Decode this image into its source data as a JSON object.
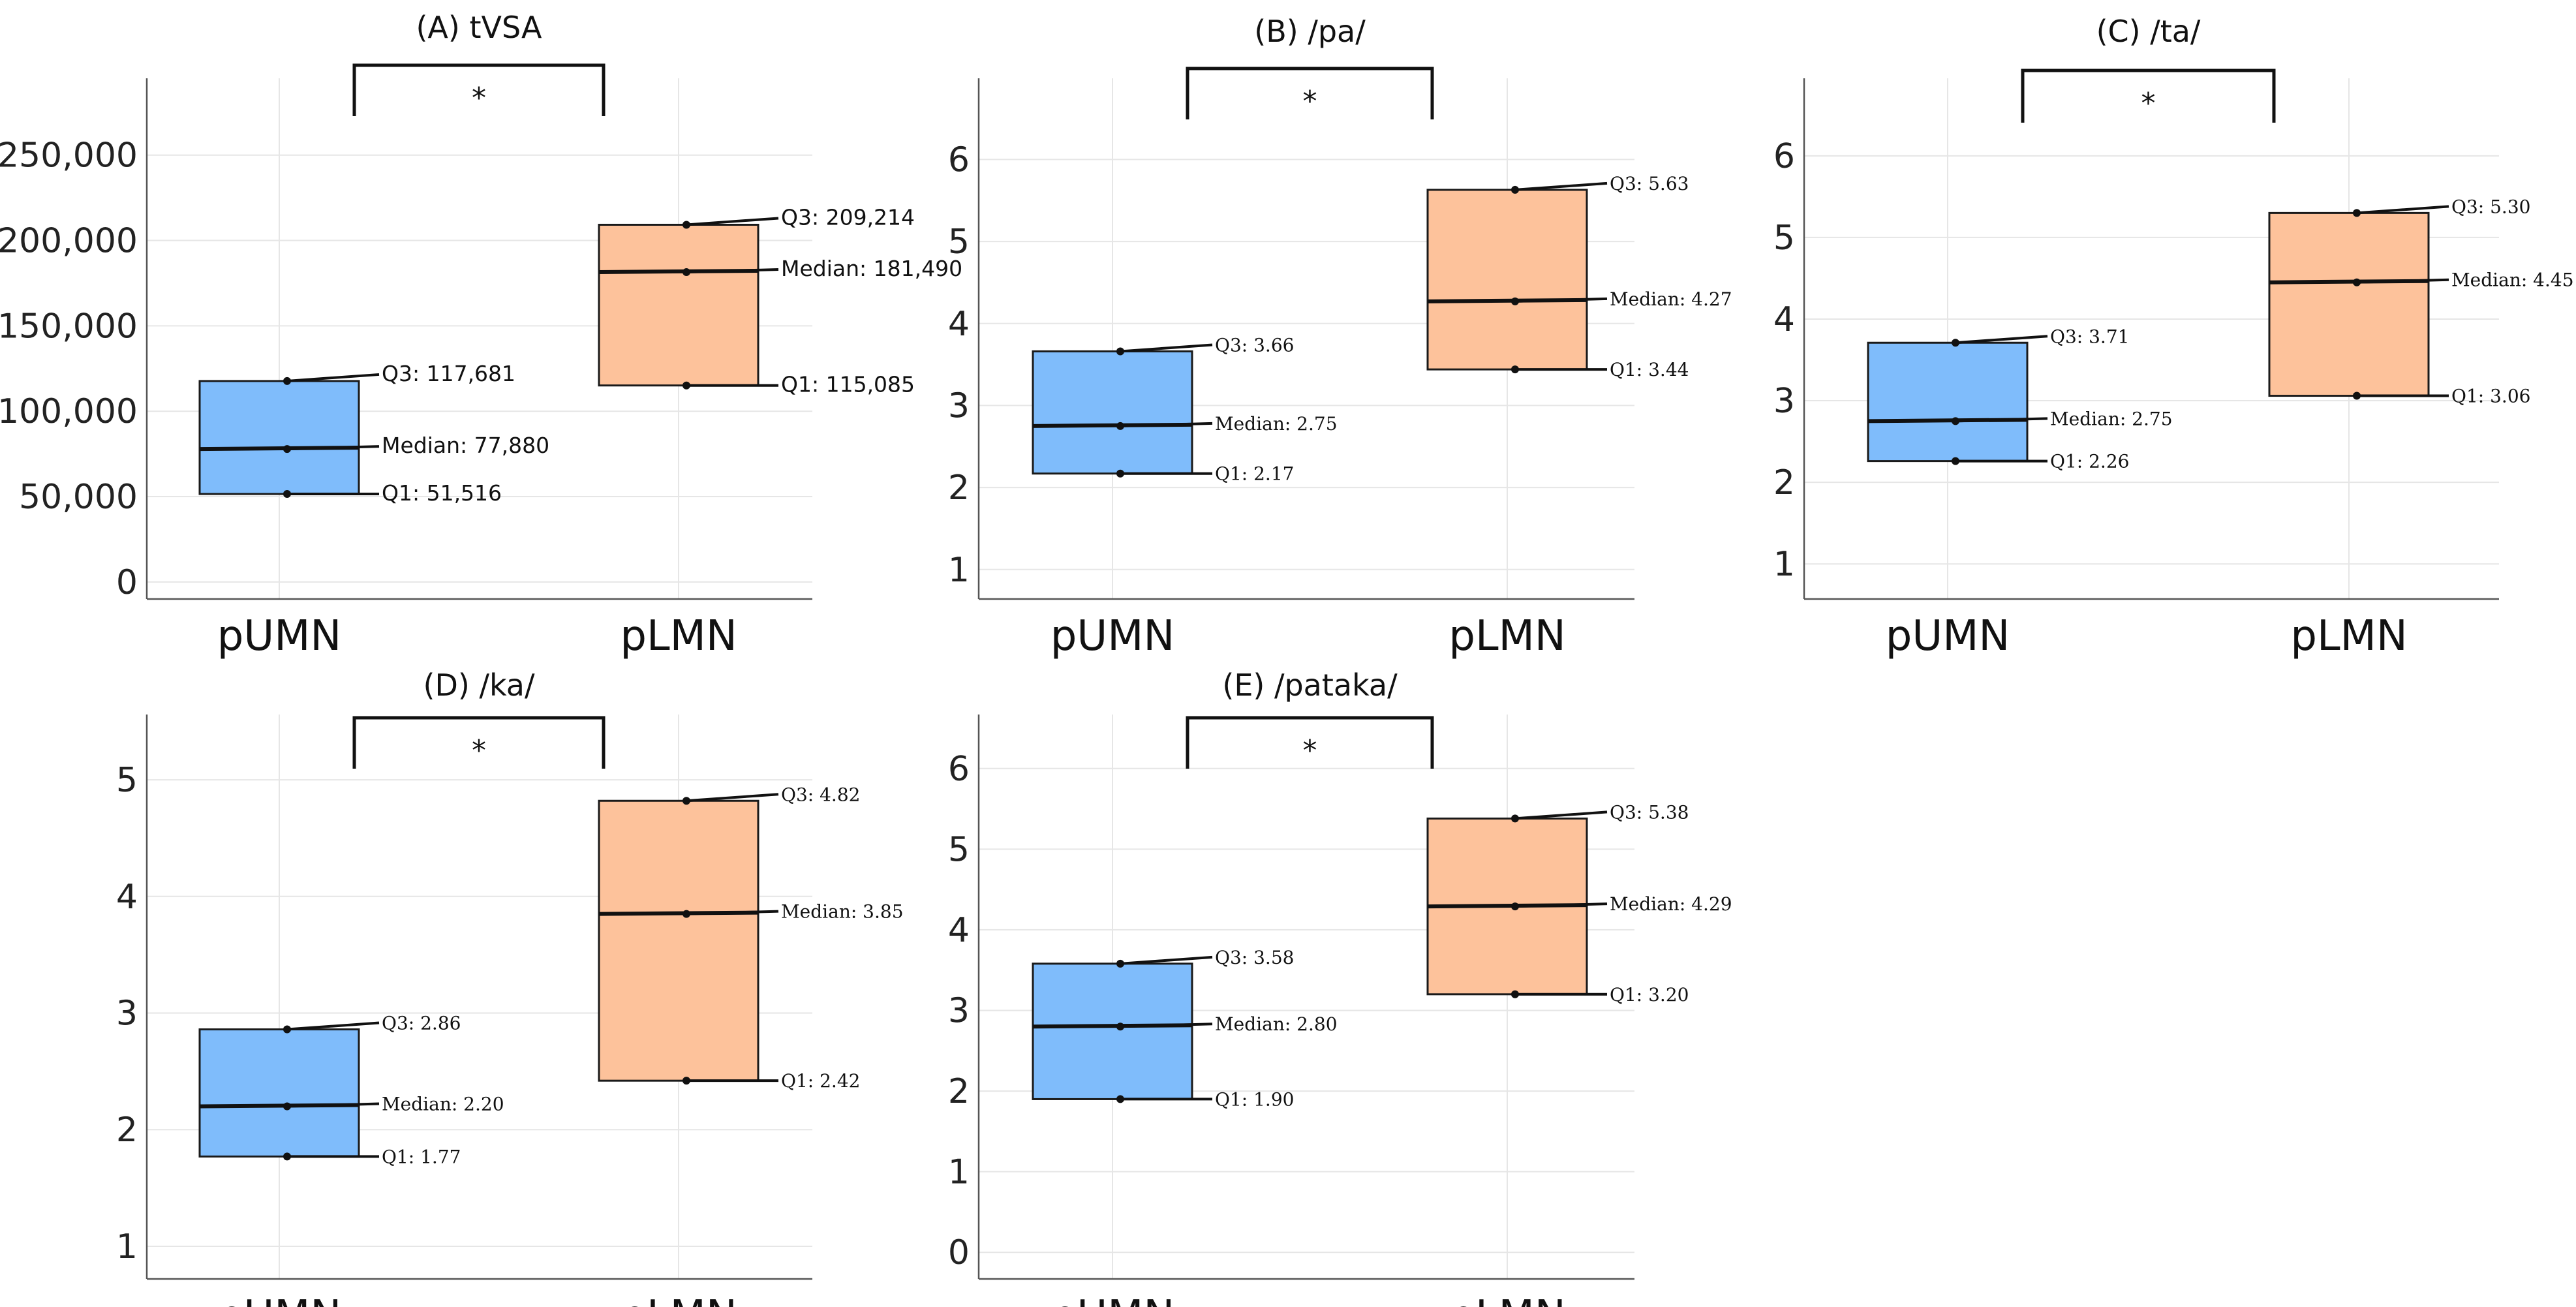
{
  "categories": [
    "pUMN",
    "pLMN"
  ],
  "colors": {
    "pUMN": "#7fbcfb",
    "pLMN": "#fdc29b",
    "outline": "#1a1a1a"
  },
  "significance_label": "*",
  "chart_data": [
    {
      "type": "box",
      "title": "(A) tVSA",
      "categories": [
        "pUMN",
        "pLMN"
      ],
      "ylim": [
        -10000,
        295000
      ],
      "yticks": [
        0,
        50000,
        100000,
        150000,
        200000,
        250000
      ],
      "ytick_labels": [
        "0",
        "50,000",
        "100,000",
        "150,000",
        "200,000",
        "250,000"
      ],
      "series": [
        {
          "name": "pUMN",
          "q1": 51516,
          "median": 77880,
          "q3": 117681,
          "labels": [
            "Q3: 117,681",
            "Median: 77,880",
            "Q1: 51,516"
          ]
        },
        {
          "name": "pLMN",
          "q1": 115085,
          "median": 181490,
          "q3": 209214,
          "labels": [
            "Q3: 209,214",
            "Median: 181,490",
            "Q1: 115,085"
          ]
        }
      ],
      "significance": "*",
      "label_font": "sans"
    },
    {
      "type": "box",
      "title": "(B) /pa/",
      "categories": [
        "pUMN",
        "pLMN"
      ],
      "ylim": [
        0.64,
        6.99
      ],
      "yticks": [
        1,
        2,
        3,
        4,
        5,
        6
      ],
      "ytick_labels": [
        "1",
        "2",
        "3",
        "4",
        "5",
        "6"
      ],
      "series": [
        {
          "name": "pUMN",
          "q1": 2.17,
          "median": 2.75,
          "q3": 3.66,
          "labels": [
            "Q3: 3.66",
            "Median: 2.75",
            "Q1: 2.17"
          ]
        },
        {
          "name": "pLMN",
          "q1": 3.44,
          "median": 4.27,
          "q3": 5.63,
          "labels": [
            "Q3: 5.63",
            "Median: 4.27",
            "Q1: 3.44"
          ]
        }
      ],
      "significance": "*",
      "label_font": "serif"
    },
    {
      "type": "box",
      "title": "(C) /ta/",
      "categories": [
        "pUMN",
        "pLMN"
      ],
      "ylim": [
        0.57,
        6.95
      ],
      "yticks": [
        1,
        2,
        3,
        4,
        5,
        6
      ],
      "ytick_labels": [
        "1",
        "2",
        "3",
        "4",
        "5",
        "6"
      ],
      "series": [
        {
          "name": "pUMN",
          "q1": 2.26,
          "median": 2.75,
          "q3": 3.71,
          "labels": [
            "Q3: 3.71",
            "Median: 2.75",
            "Q1: 2.26"
          ]
        },
        {
          "name": "pLMN",
          "q1": 3.06,
          "median": 4.45,
          "q3": 5.3,
          "labels": [
            "Q3: 5.30",
            "Median: 4.45",
            "Q1: 3.06"
          ]
        }
      ],
      "significance": "*",
      "label_font": "serif"
    },
    {
      "type": "box",
      "title": "(D) /ka/",
      "categories": [
        "pUMN",
        "pLMN"
      ],
      "ylim": [
        0.72,
        5.56
      ],
      "yticks": [
        1,
        2,
        3,
        4,
        5
      ],
      "ytick_labels": [
        "1",
        "2",
        "3",
        "4",
        "5"
      ],
      "series": [
        {
          "name": "pUMN",
          "q1": 1.77,
          "median": 2.2,
          "q3": 2.86,
          "labels": [
            "Q3: 2.86",
            "Median: 2.20",
            "Q1: 1.77"
          ]
        },
        {
          "name": "pLMN",
          "q1": 2.42,
          "median": 3.85,
          "q3": 4.82,
          "labels": [
            "Q3: 4.82",
            "Median: 3.85",
            "Q1: 2.42"
          ]
        }
      ],
      "significance": "*",
      "label_font": "serif"
    },
    {
      "type": "box",
      "title": "(E) /pataka/",
      "categories": [
        "pUMN",
        "pLMN"
      ],
      "ylim": [
        -0.33,
        6.67
      ],
      "yticks": [
        0,
        1,
        2,
        3,
        4,
        5,
        6
      ],
      "ytick_labels": [
        "0",
        "1",
        "2",
        "3",
        "4",
        "5",
        "6"
      ],
      "series": [
        {
          "name": "pUMN",
          "q1": 1.9,
          "median": 2.8,
          "q3": 3.58,
          "labels": [
            "Q3: 3.58",
            "Median: 2.80",
            "Q1: 1.90"
          ]
        },
        {
          "name": "pLMN",
          "q1": 3.2,
          "median": 4.29,
          "q3": 5.38,
          "labels": [
            "Q3: 5.38",
            "Median: 4.29",
            "Q1: 3.20"
          ]
        }
      ],
      "significance": "*",
      "label_font": "serif"
    }
  ]
}
